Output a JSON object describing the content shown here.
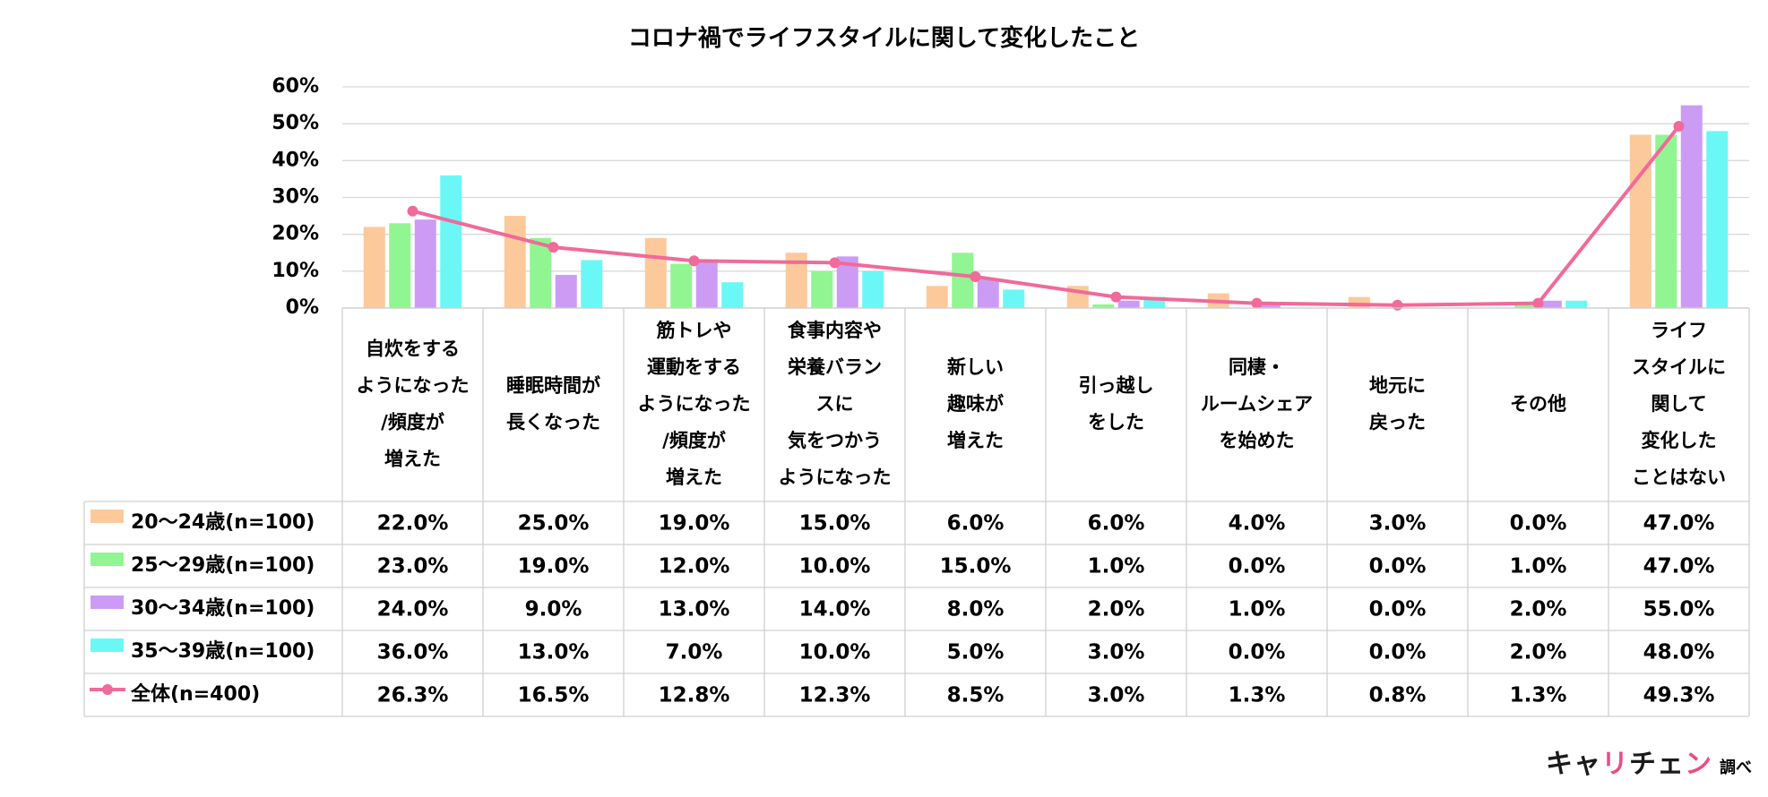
{
  "title": "コロナ禍でライフスタイルに関して変化したこと",
  "chart_data": {
    "type": "bar",
    "title": "コロナ禍でライフスタイルに関して変化したこと",
    "ylim": [
      0,
      60
    ],
    "yticks": [
      "0%",
      "10%",
      "20%",
      "30%",
      "40%",
      "50%",
      "60%"
    ],
    "grid": true,
    "categories": [
      [
        "自炊をする",
        "ようになった",
        "/頻度が",
        "増えた"
      ],
      [
        "睡眠時間が",
        "長くなった"
      ],
      [
        "筋トレや",
        "運動をする",
        "ようになった",
        "/頻度が",
        "増えた"
      ],
      [
        "食事内容や",
        "栄養バラン",
        "スに",
        "気をつかう",
        "ようになった"
      ],
      [
        "新しい",
        "趣味が",
        "増えた"
      ],
      [
        "引っ越し",
        "をした"
      ],
      [
        "同棲・",
        "ルームシェア",
        "を始めた"
      ],
      [
        "地元に",
        "戻った"
      ],
      [
        "その他"
      ],
      [
        "ライフ",
        "スタイルに",
        "関して",
        "変化した",
        "ことはない"
      ]
    ],
    "series": [
      {
        "name": "20～24歳(n=100)",
        "type": "bar",
        "color": "#fcc99b",
        "values": [
          22.0,
          25.0,
          19.0,
          15.0,
          6.0,
          6.0,
          4.0,
          3.0,
          0.0,
          47.0
        ],
        "labels": [
          "22.0%",
          "25.0%",
          "19.0%",
          "15.0%",
          "6.0%",
          "6.0%",
          "4.0%",
          "3.0%",
          "0.0%",
          "47.0%"
        ]
      },
      {
        "name": "25～29歳(n=100)",
        "type": "bar",
        "color": "#91f591",
        "values": [
          23.0,
          19.0,
          12.0,
          10.0,
          15.0,
          1.0,
          0.0,
          0.0,
          1.0,
          47.0
        ],
        "labels": [
          "23.0%",
          "19.0%",
          "12.0%",
          "10.0%",
          "15.0%",
          "1.0%",
          "0.0%",
          "0.0%",
          "1.0%",
          "47.0%"
        ]
      },
      {
        "name": "30～34歳(n=100)",
        "type": "bar",
        "color": "#cc9cf5",
        "values": [
          24.0,
          9.0,
          13.0,
          14.0,
          8.0,
          2.0,
          1.0,
          0.0,
          2.0,
          55.0
        ],
        "labels": [
          "24.0%",
          "9.0%",
          "13.0%",
          "14.0%",
          "8.0%",
          "2.0%",
          "1.0%",
          "0.0%",
          "2.0%",
          "55.0%"
        ]
      },
      {
        "name": "35～39歳(n=100)",
        "type": "bar",
        "color": "#6cf7f7",
        "values": [
          36.0,
          13.0,
          7.0,
          10.0,
          5.0,
          3.0,
          0.0,
          0.0,
          2.0,
          48.0
        ],
        "labels": [
          "36.0%",
          "13.0%",
          "7.0%",
          "10.0%",
          "5.0%",
          "3.0%",
          "0.0%",
          "0.0%",
          "2.0%",
          "48.0%"
        ]
      },
      {
        "name": "全体(n=400)",
        "type": "line",
        "color": "#f06a9a",
        "values": [
          26.3,
          16.5,
          12.8,
          12.3,
          8.5,
          3.0,
          1.3,
          0.8,
          1.3,
          49.3
        ],
        "labels": [
          "26.3%",
          "16.5%",
          "12.8%",
          "12.3%",
          "8.5%",
          "3.0%",
          "1.3%",
          "0.8%",
          "1.3%",
          "49.3%"
        ]
      }
    ]
  },
  "brand": {
    "logo_dark_1": "キャ",
    "logo_pink_1": "リ",
    "logo_dark_2": "チェ",
    "logo_pink_2": "ン",
    "suffix": "調べ"
  }
}
